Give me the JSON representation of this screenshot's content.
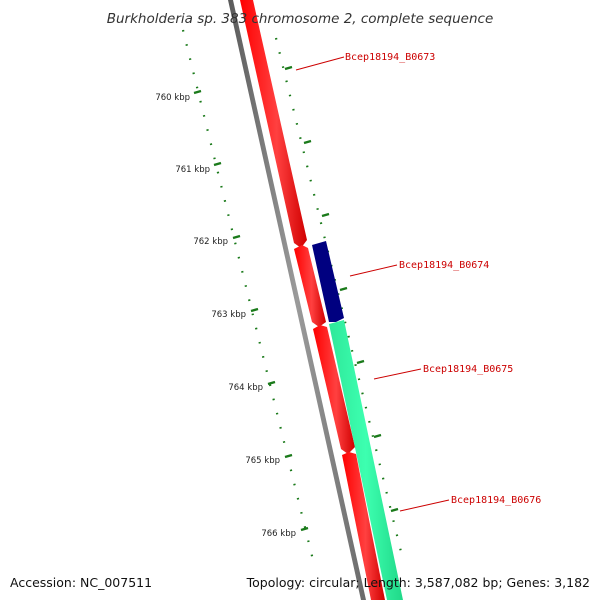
{
  "title": "Burkholderia sp. 383 chromosome 2, complete sequence",
  "footer": {
    "accession": "Accession: NC_007511",
    "summary": "Topology: circular; Length: 3,587,082 bp; Genes: 3,182"
  },
  "colors": {
    "backbone": "#7a7a7a",
    "gene_forward": "#ff0000",
    "gene_cds_blue": "#000080",
    "gene_cds_green": "#2eff9e",
    "tick": "#1a7a1a",
    "label": "#cc0000"
  },
  "chart_data": {
    "type": "genome-map",
    "unit": "kbp",
    "ticks": [
      "760 kbp",
      "761 kbp",
      "762 kbp",
      "763 kbp",
      "764 kbp",
      "765 kbp",
      "766 kbp"
    ],
    "genes": [
      {
        "name": "Bcep18194_B0673",
        "strand": "+",
        "color": "gene_forward"
      },
      {
        "name": "Bcep18194_B0674",
        "strand": "-",
        "color": "gene_cds_blue"
      },
      {
        "name": "Bcep18194_B0675",
        "strand": "-",
        "color": "gene_cds_green"
      },
      {
        "name": "Bcep18194_B0676",
        "strand": "+",
        "color": "gene_forward"
      }
    ]
  }
}
